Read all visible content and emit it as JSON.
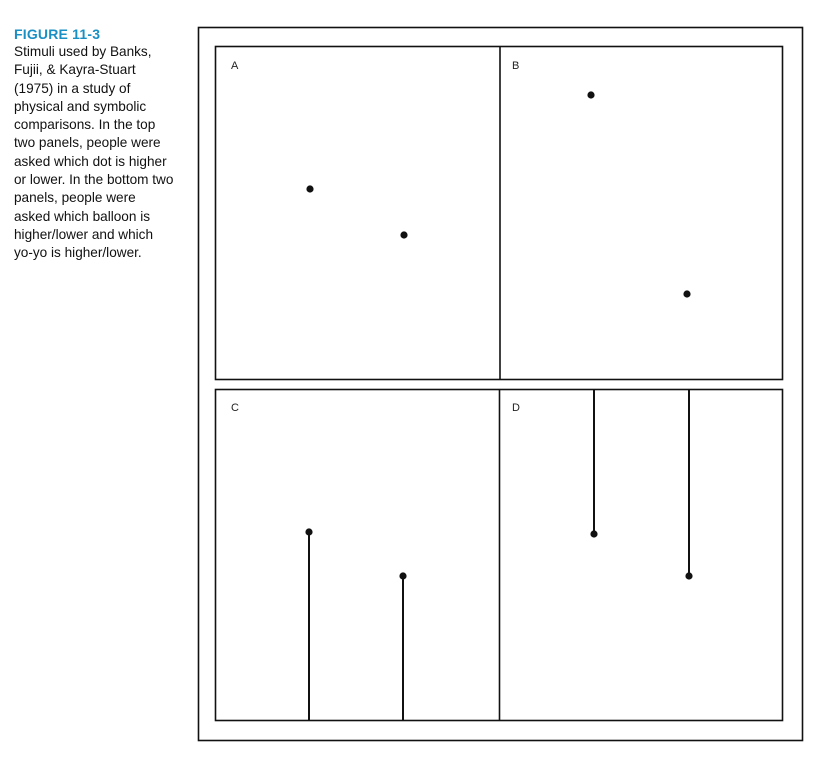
{
  "caption": {
    "label": "FIGURE 11-3",
    "text": "Stimuli used by Banks, Fujii, & Kayra-Stuart (1975) in a study of physical and symbolic comparisons. In the top two panels, people were asked which dot is higher or lower. In the bottom two panels, people were asked which balloon is higher/lower and which yo-yo is higher/lower.",
    "label_color": "#1a8fc4"
  },
  "panels": {
    "a": {
      "letter": "A",
      "content": "dots"
    },
    "b": {
      "letter": "B",
      "content": "dots"
    },
    "c": {
      "letter": "C",
      "content": "balloons"
    },
    "d": {
      "letter": "D",
      "content": "yo-yos"
    }
  }
}
